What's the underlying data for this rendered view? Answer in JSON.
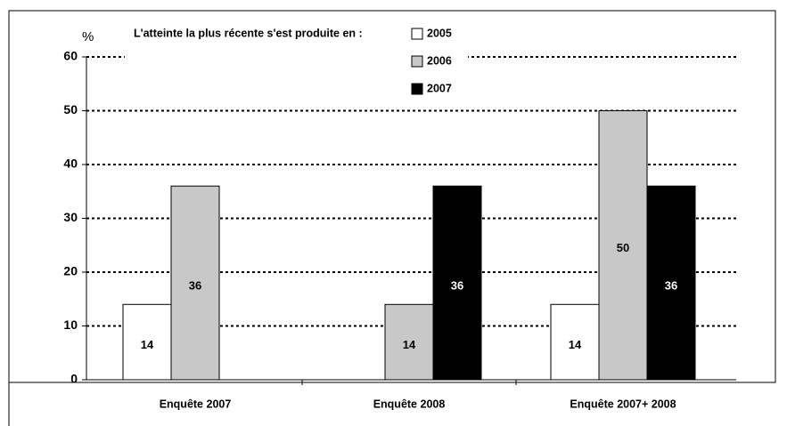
{
  "chart_data": {
    "type": "bar",
    "y_label": "%",
    "legend_title": "L'atteinte la plus récente s'est produite en :",
    "categories": [
      "Enquête 2007",
      "Enquête 2008",
      "Enquête 2007+ 2008"
    ],
    "series": [
      {
        "name": "2005",
        "color": "#ffffff",
        "values": [
          14,
          null,
          14
        ]
      },
      {
        "name": "2006",
        "color": "#c8c8c8",
        "values": [
          36,
          14,
          50
        ]
      },
      {
        "name": "2007",
        "color": "#000000",
        "values": [
          null,
          36,
          36
        ]
      }
    ],
    "ylim": [
      0,
      60
    ],
    "yticks": [
      0,
      10,
      20,
      30,
      40,
      50,
      60
    ],
    "grid": true
  }
}
